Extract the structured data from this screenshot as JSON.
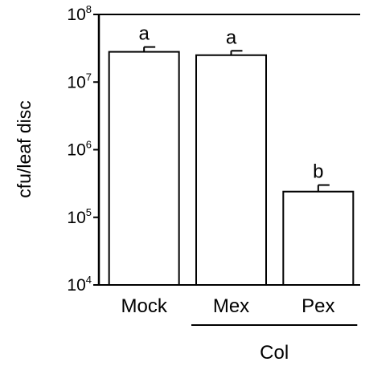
{
  "chart_data": {
    "type": "bar",
    "yscale": "log",
    "ylabel": "cfu/leaf disc",
    "ylim": [
      10000,
      100000000
    ],
    "yticks": [
      {
        "value": 10000,
        "base": "10",
        "exp": "4"
      },
      {
        "value": 100000,
        "base": "10",
        "exp": "5"
      },
      {
        "value": 1000000,
        "base": "10",
        "exp": "6"
      },
      {
        "value": 10000000,
        "base": "10",
        "exp": "7"
      },
      {
        "value": 100000000,
        "base": "10",
        "exp": "8"
      }
    ],
    "categories": [
      "Mock",
      "Mex",
      "Pex"
    ],
    "values": [
      28000000,
      25000000,
      240000
    ],
    "error_upper": [
      33000000,
      29000000,
      300000
    ],
    "annotations": [
      "a",
      "a",
      "b"
    ],
    "group_label": {
      "text": "Col",
      "categories": [
        "Mex",
        "Pex"
      ]
    },
    "bar_color": "#ffffff",
    "edge_color": "#000000",
    "grid": false
  }
}
